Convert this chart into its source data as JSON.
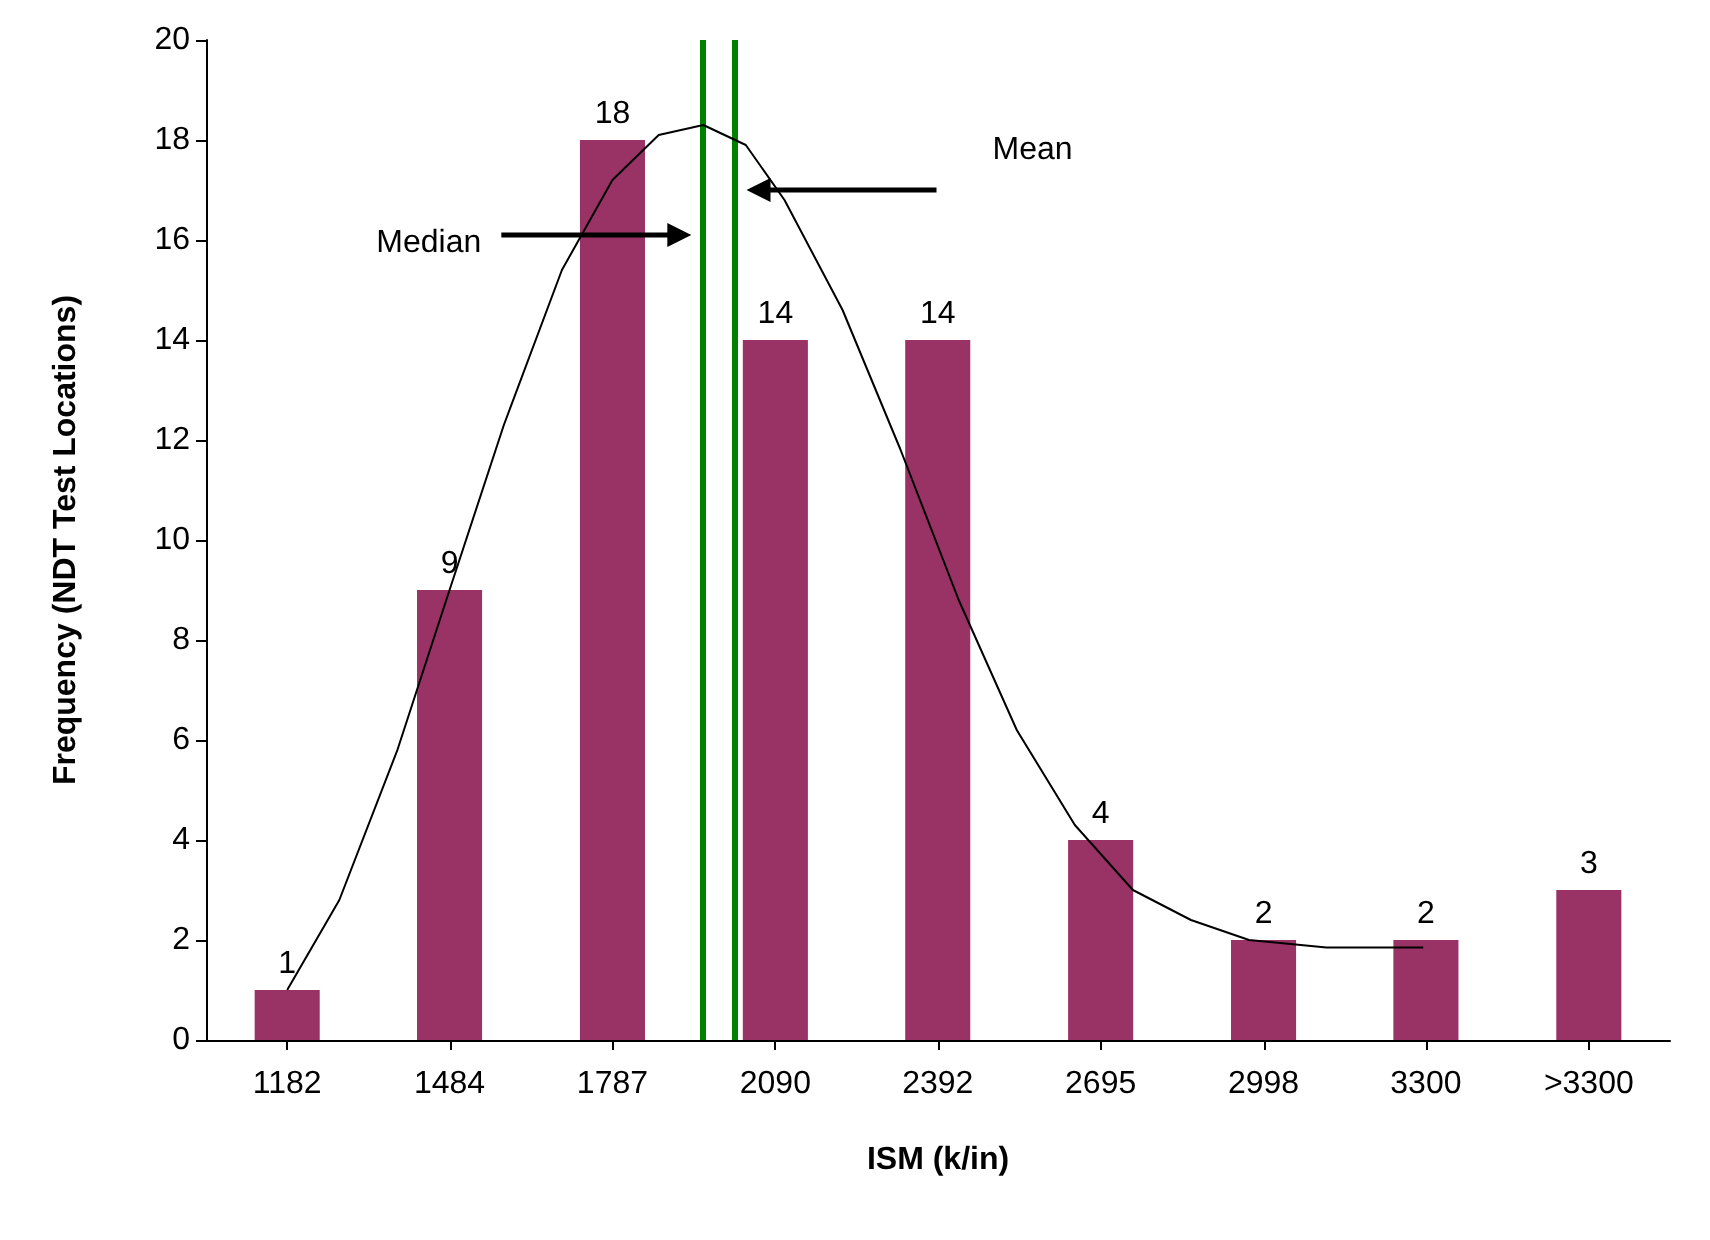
{
  "chart_data": {
    "type": "bar",
    "xlabel": "ISM (k/in)",
    "ylabel": "Frequency (NDT Test Locations)",
    "x": [
      1182,
      1484,
      1787,
      2090,
      2392,
      2695,
      2998,
      3300,
      3603
    ],
    "series": [
      {
        "color": "#993366",
        "values": [
          1,
          9,
          18,
          14,
          14,
          4,
          2,
          2,
          3
        ],
        "value_labels": [
          "1",
          "9",
          "18",
          "14",
          "14",
          "4",
          "2",
          "2",
          "3"
        ]
      },
      {
        "type": "line",
        "color": "#000000",
        "x": [
          1182,
          1279,
          1387,
          1484,
          1585,
          1693,
          1787,
          1873,
          1956,
          2035,
          2107,
          2215,
          2323,
          2431,
          2539,
          2647,
          2755,
          2863,
          2971,
          3115,
          3295
        ],
        "values": [
          1.0,
          2.8,
          5.8,
          9.0,
          12.3,
          15.4,
          17.2,
          18.1,
          18.3,
          17.9,
          16.8,
          14.6,
          11.8,
          8.8,
          6.2,
          4.3,
          3.0,
          2.4,
          2.0,
          1.85,
          1.85
        ]
      }
    ],
    "xlim": [
      1031,
      3754
    ],
    "xticks": [
      1182,
      1484,
      1787,
      2090,
      2392,
      2695,
      2998,
      3300,
      {
        "value": 3603,
        "label": ">3300"
      }
    ],
    "ylim": [
      0,
      20
    ],
    "yticks": [
      0,
      2,
      4,
      6,
      8,
      10,
      12,
      14,
      16,
      18,
      20
    ],
    "ref_lines": [
      {
        "axis": "x",
        "value": 1956,
        "color": "#008000"
      },
      {
        "axis": "x",
        "value": 2014,
        "color": "#008000"
      }
    ],
    "annotations": [
      "Median",
      "Mean"
    ],
    "grid": false,
    "marker": "none"
  }
}
